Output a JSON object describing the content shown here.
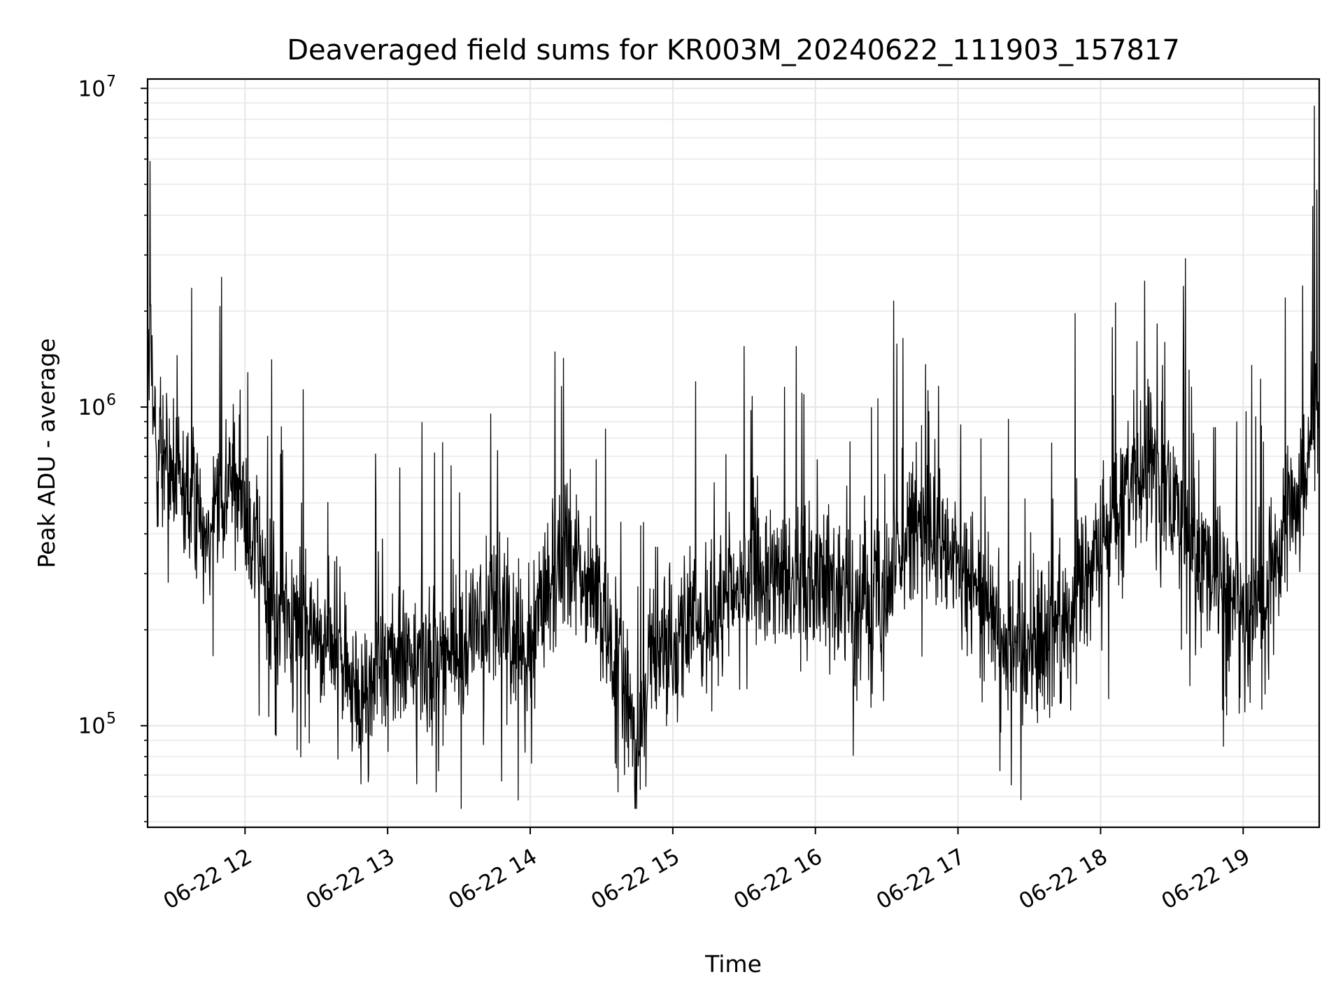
{
  "chart_data": {
    "type": "line",
    "title": "Deaveraged field sums for KR003M_20240622_111903_157817",
    "xlabel": "Time",
    "ylabel": "Peak ADU - average",
    "yscale": "log",
    "ylim": [
      48000,
      10700000
    ],
    "xlim": [
      "2024-06-22 11:19",
      "2024-06-22 19:32"
    ],
    "grid": true,
    "line_color": "#000000",
    "x_ticks": [
      {
        "time": "2024-06-22 12:00",
        "label": "06-22 12"
      },
      {
        "time": "2024-06-22 13:00",
        "label": "06-22 13"
      },
      {
        "time": "2024-06-22 14:00",
        "label": "06-22 14"
      },
      {
        "time": "2024-06-22 15:00",
        "label": "06-22 15"
      },
      {
        "time": "2024-06-22 16:00",
        "label": "06-22 16"
      },
      {
        "time": "2024-06-22 17:00",
        "label": "06-22 17"
      },
      {
        "time": "2024-06-22 18:00",
        "label": "06-22 18"
      },
      {
        "time": "2024-06-22 19:00",
        "label": "06-22 19"
      }
    ],
    "y_ticks": [
      {
        "value": 100000,
        "base": "10",
        "exp": "5"
      },
      {
        "value": 1000000,
        "base": "10",
        "exp": "6"
      },
      {
        "value": 10000000,
        "base": "10",
        "exp": "7"
      }
    ],
    "series": [
      {
        "x": [
          "2024-06-22 11:19",
          "2024-06-22 11:20",
          "2024-06-22 11:21",
          "2024-06-22 11:23",
          "2024-06-22 11:26",
          "2024-06-22 11:30",
          "2024-06-22 11:35",
          "2024-06-22 11:40",
          "2024-06-22 11:45",
          "2024-06-22 11:50",
          "2024-06-22 11:55",
          "2024-06-22 12:00",
          "2024-06-22 12:05",
          "2024-06-22 12:10",
          "2024-06-22 12:15",
          "2024-06-22 12:20",
          "2024-06-22 12:30",
          "2024-06-22 12:40",
          "2024-06-22 12:45",
          "2024-06-22 12:50",
          "2024-06-22 13:00",
          "2024-06-22 13:10",
          "2024-06-22 13:20",
          "2024-06-22 13:30",
          "2024-06-22 13:40",
          "2024-06-22 13:45",
          "2024-06-22 13:50",
          "2024-06-22 14:00",
          "2024-06-22 14:10",
          "2024-06-22 14:20",
          "2024-06-22 14:30",
          "2024-06-22 14:35",
          "2024-06-22 14:40",
          "2024-06-22 14:45",
          "2024-06-22 14:50",
          "2024-06-22 15:00",
          "2024-06-22 15:10",
          "2024-06-22 15:20",
          "2024-06-22 15:30",
          "2024-06-22 15:40",
          "2024-06-22 15:50",
          "2024-06-22 16:00",
          "2024-06-22 16:10",
          "2024-06-22 16:20",
          "2024-06-22 16:30",
          "2024-06-22 16:40",
          "2024-06-22 16:50",
          "2024-06-22 17:00",
          "2024-06-22 17:10",
          "2024-06-22 17:20",
          "2024-06-22 17:30",
          "2024-06-22 17:40",
          "2024-06-22 17:50",
          "2024-06-22 18:00",
          "2024-06-22 18:10",
          "2024-06-22 18:20",
          "2024-06-22 18:30",
          "2024-06-22 18:40",
          "2024-06-22 18:50",
          "2024-06-22 19:00",
          "2024-06-22 19:10",
          "2024-06-22 19:20",
          "2024-06-22 19:25",
          "2024-06-22 19:30",
          "2024-06-22 19:32"
        ],
        "values": [
          1000000,
          1900000,
          1000000,
          800000,
          700000,
          600000,
          500000,
          500000,
          450000,
          550000,
          600000,
          500000,
          350000,
          250000,
          220000,
          230000,
          200000,
          170000,
          130000,
          115000,
          170000,
          150000,
          170000,
          160000,
          220000,
          260000,
          180000,
          190000,
          330000,
          320000,
          220000,
          170000,
          120000,
          90000,
          150000,
          190000,
          210000,
          210000,
          300000,
          290000,
          280000,
          330000,
          250000,
          240000,
          280000,
          450000,
          350000,
          320000,
          260000,
          200000,
          180000,
          200000,
          250000,
          350000,
          550000,
          650000,
          550000,
          350000,
          280000,
          220000,
          250000,
          450000,
          600000,
          950000,
          1000000
        ],
        "peaks": [
          {
            "time": "2024-06-22 11:20",
            "value": 5900000
          },
          {
            "time": "2024-06-22 16:33",
            "value": 2150000
          },
          {
            "time": "2024-06-22 15:52",
            "value": 1550000
          },
          {
            "time": "2024-06-22 15:30",
            "value": 1550000
          },
          {
            "time": "2024-06-22 19:25",
            "value": 2400000
          },
          {
            "time": "2024-06-22 19:30",
            "value": 8800000
          },
          {
            "time": "2024-06-22 19:31",
            "value": 4800000
          }
        ],
        "troughs": [
          {
            "time": "2024-06-22 14:37",
            "value": 62000
          },
          {
            "time": "2024-06-22 13:48",
            "value": 67000
          },
          {
            "time": "2024-06-22 12:48",
            "value": 85000
          },
          {
            "time": "2024-06-22 12:13",
            "value": 93000
          },
          {
            "time": "2024-06-22 17:21",
            "value": 112000
          },
          {
            "time": "2024-06-22 18:53",
            "value": 108000
          }
        ]
      }
    ]
  }
}
